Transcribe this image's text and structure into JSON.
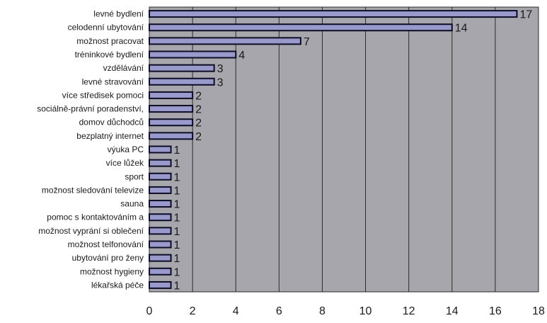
{
  "chart_data": {
    "type": "bar",
    "orientation": "horizontal",
    "categories": [
      "levné bydlení",
      "celodenní ubytování",
      "možnost pracovat",
      "tréninkové bydlení",
      "vzdělávání",
      "levné stravování",
      "více středisek pomoci",
      "sociálně-právní poradenství,",
      "domov důchodců",
      "bezplatný internet",
      "výuka PC",
      "více lůžek",
      "sport",
      "možnost sledování televize",
      "sauna",
      "pomoc s kontaktováním a",
      "možnost vyprání si oblečení",
      "možnost telfonování",
      "ubytování pro ženy",
      "možnost hygieny",
      "lékařská péče"
    ],
    "values": [
      17,
      14,
      7,
      4,
      3,
      3,
      2,
      2,
      2,
      2,
      1,
      1,
      1,
      1,
      1,
      1,
      1,
      1,
      1,
      1,
      1
    ],
    "x_ticks": [
      "0",
      "2",
      "4",
      "6",
      "8",
      "10",
      "12",
      "14",
      "16",
      "18"
    ],
    "xlim": [
      0,
      18
    ],
    "grid": true,
    "colors": {
      "plot_bg": "#a6a6ac",
      "bar_fill": "#9999cc",
      "bar_stroke": "#0d0d26",
      "grid": "#2b2b2b",
      "text": "#1a1a1a"
    }
  }
}
